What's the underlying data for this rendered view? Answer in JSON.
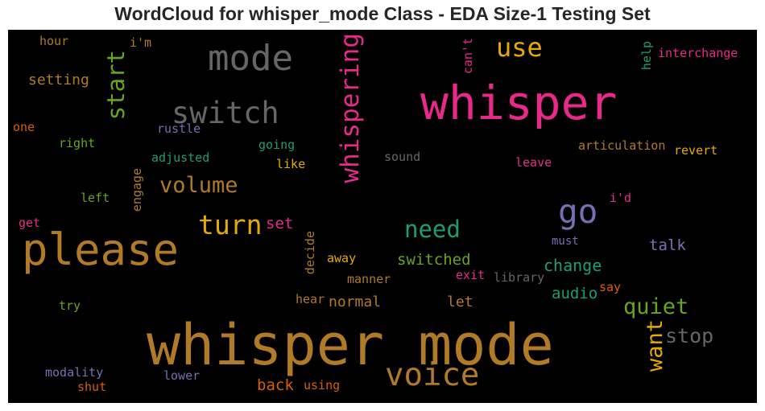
{
  "chart_data": {
    "type": "wordcloud",
    "title": "WordCloud for whisper_mode Class - EDA Size-1 Testing Set",
    "background": "#000000",
    "words": [
      {
        "text": "whisper mode",
        "color": "#b07a26"
      },
      {
        "text": "whisper",
        "color": "#e7298a"
      },
      {
        "text": "please",
        "color": "#b07a26"
      },
      {
        "text": "mode",
        "color": "#666666"
      },
      {
        "text": "switch",
        "color": "#666666"
      },
      {
        "text": "voice",
        "color": "#b07a26"
      },
      {
        "text": "go",
        "color": "#7570b3"
      },
      {
        "text": "use",
        "color": "#e6ab02"
      },
      {
        "text": "whispering",
        "color": "#e7298a"
      },
      {
        "text": "turn",
        "color": "#e6ab02"
      },
      {
        "text": "start",
        "color": "#66a61e"
      },
      {
        "text": "volume",
        "color": "#b07a26"
      },
      {
        "text": "need",
        "color": "#1b9e77"
      },
      {
        "text": "quiet",
        "color": "#66a61e"
      },
      {
        "text": "want",
        "color": "#e6ab02"
      },
      {
        "text": "stop",
        "color": "#666666"
      },
      {
        "text": "normal",
        "color": "#b07a26"
      },
      {
        "text": "switched",
        "color": "#66a61e"
      },
      {
        "text": "change",
        "color": "#1b9e77"
      },
      {
        "text": "audio",
        "color": "#1b9e77"
      },
      {
        "text": "talk",
        "color": "#7570b3"
      },
      {
        "text": "back",
        "color": "#d95f02"
      },
      {
        "text": "setting",
        "color": "#b07a26"
      },
      {
        "text": "set",
        "color": "#e7298a"
      },
      {
        "text": "let",
        "color": "#b07a26"
      },
      {
        "text": "interchange",
        "color": "#e7298a"
      },
      {
        "text": "articulation",
        "color": "#b07a26"
      },
      {
        "text": "revert",
        "color": "#e6ab02"
      },
      {
        "text": "adjusted",
        "color": "#1b9e77"
      },
      {
        "text": "rustle",
        "color": "#7570b3"
      },
      {
        "text": "going",
        "color": "#1b9e77"
      },
      {
        "text": "sound",
        "color": "#666666"
      },
      {
        "text": "leave",
        "color": "#e7298a"
      },
      {
        "text": "like",
        "color": "#e6ab02"
      },
      {
        "text": "right",
        "color": "#66a61e"
      },
      {
        "text": "one",
        "color": "#d95f02"
      },
      {
        "text": "hour",
        "color": "#b07a26"
      },
      {
        "text": "i'm",
        "color": "#b07a26"
      },
      {
        "text": "can't",
        "color": "#e7298a"
      },
      {
        "text": "help",
        "color": "#1b9e77"
      },
      {
        "text": "engage",
        "color": "#b07a26"
      },
      {
        "text": "left",
        "color": "#66a61e"
      },
      {
        "text": "i'd",
        "color": "#e7298a"
      },
      {
        "text": "must",
        "color": "#7570b3"
      },
      {
        "text": "get",
        "color": "#e7298a"
      },
      {
        "text": "decide",
        "color": "#b07a26"
      },
      {
        "text": "away",
        "color": "#e6ab02"
      },
      {
        "text": "exit",
        "color": "#e7298a"
      },
      {
        "text": "library",
        "color": "#666666"
      },
      {
        "text": "manner",
        "color": "#b07a26"
      },
      {
        "text": "say",
        "color": "#d95f02"
      },
      {
        "text": "try",
        "color": "#66a61e"
      },
      {
        "text": "hear",
        "color": "#b07a26"
      },
      {
        "text": "modality",
        "color": "#7570b3"
      },
      {
        "text": "lower",
        "color": "#7570b3"
      },
      {
        "text": "shut",
        "color": "#d95f02"
      },
      {
        "text": "using",
        "color": "#d95f02"
      }
    ]
  }
}
